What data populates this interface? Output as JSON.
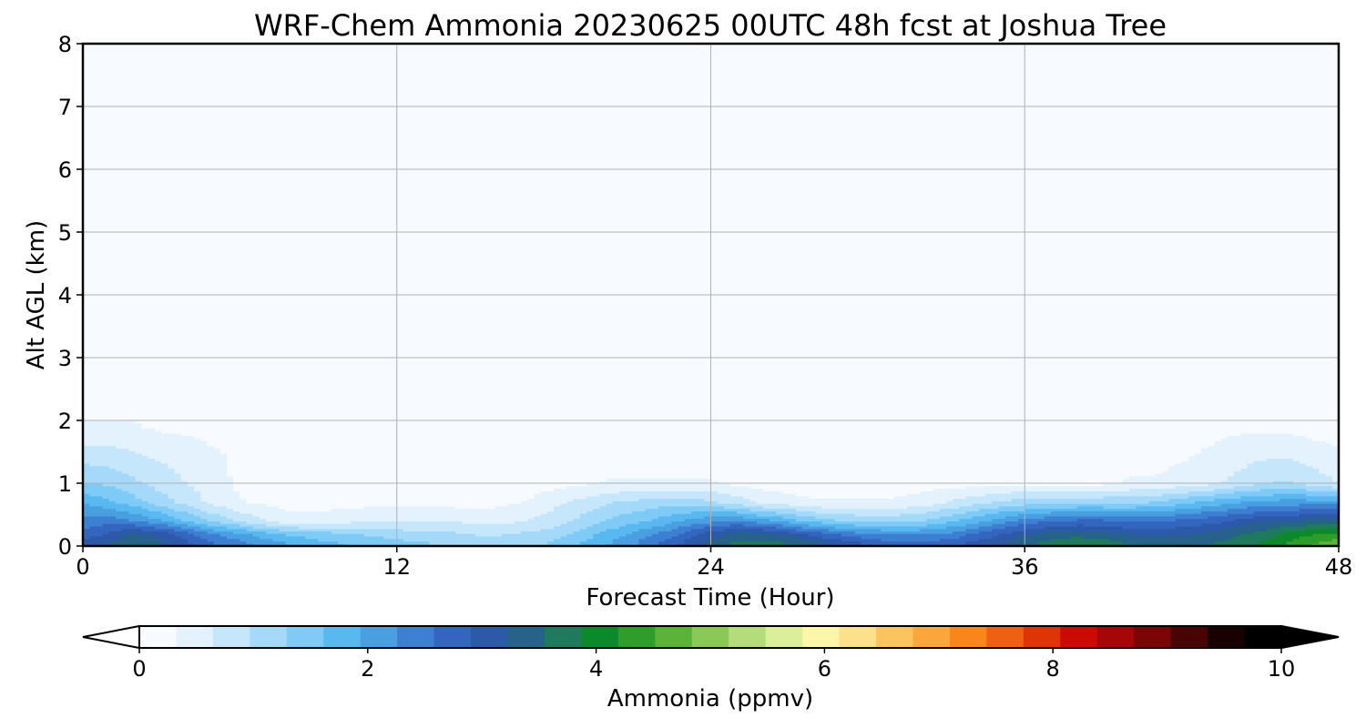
{
  "chart_data": {
    "type": "heatmap",
    "title": "WRF-Chem Ammonia  20230625 00UTC 48h fcst at Joshua Tree",
    "xlabel": "Forecast Time (Hour)",
    "ylabel": "Alt AGL (km)",
    "xlim": [
      0,
      48
    ],
    "ylim": [
      0,
      8
    ],
    "xticks": [
      "0",
      "12",
      "24",
      "36",
      "48"
    ],
    "yticks": [
      "0",
      "1",
      "2",
      "3",
      "4",
      "5",
      "6",
      "7",
      "8"
    ],
    "grid": true,
    "colorbar": {
      "label": "Ammonia  (ppmv)",
      "range": [
        0,
        10
      ],
      "ticks": [
        "0",
        "2",
        "4",
        "6",
        "8",
        "10"
      ],
      "extend": "both",
      "colors": [
        "#f7fbff",
        "#e3f2fd",
        "#c6e7fb",
        "#a4d9fa",
        "#7fcaf7",
        "#5ab8f0",
        "#4a9fe0",
        "#3d7fd0",
        "#3466c0",
        "#2c5aa8",
        "#27628a",
        "#1f7a5e",
        "#0c8a2a",
        "#2e9d2a",
        "#5cb33a",
        "#8ac857",
        "#b5dc7a",
        "#dcee9c",
        "#fbf6a8",
        "#fde08a",
        "#fcc45e",
        "#fba63a",
        "#f8861a",
        "#ee6012",
        "#de3408",
        "#cc0a04",
        "#a60606",
        "#7a0505",
        "#4a0303",
        "#1a0101",
        "#000000"
      ]
    },
    "profile_hours": [
      0,
      1,
      2,
      3,
      4,
      5,
      6,
      7,
      8,
      9,
      10,
      11,
      12,
      13,
      14,
      15,
      16,
      17,
      18,
      19,
      20,
      21,
      22,
      23,
      24,
      25,
      26,
      27,
      28,
      29,
      30,
      31,
      32,
      33,
      34,
      35,
      36,
      37,
      38,
      39,
      40,
      41,
      42,
      43,
      44,
      45,
      46,
      47,
      48
    ],
    "series": [
      {
        "name": "",
        "level_km": 0.05,
        "values": [
          3.0,
          3.2,
          3.5,
          3.2,
          2.9,
          2.5,
          2.3,
          2.0,
          1.8,
          1.6,
          1.5,
          1.4,
          1.3,
          1.2,
          1.1,
          1.0,
          1.0,
          1.1,
          1.2,
          1.5,
          1.8,
          2.1,
          2.5,
          2.9,
          3.3,
          3.6,
          3.6,
          3.5,
          3.3,
          3.0,
          2.8,
          2.6,
          2.6,
          2.7,
          2.9,
          3.1,
          3.4,
          3.6,
          3.7,
          3.7,
          3.5,
          3.4,
          3.4,
          3.5,
          3.6,
          3.8,
          4.2,
          4.5,
          4.7
        ]
      },
      {
        "name": "",
        "level_km": 0.2,
        "values": [
          2.6,
          2.9,
          3.2,
          3.0,
          2.6,
          2.2,
          1.9,
          1.6,
          1.4,
          1.3,
          1.2,
          1.1,
          1.0,
          0.9,
          0.9,
          0.8,
          0.8,
          0.9,
          1.0,
          1.3,
          1.6,
          1.9,
          2.2,
          2.6,
          3.0,
          3.3,
          3.2,
          3.0,
          2.7,
          2.4,
          2.2,
          2.1,
          2.1,
          2.2,
          2.5,
          2.8,
          3.1,
          3.3,
          3.4,
          3.3,
          3.1,
          3.0,
          3.1,
          3.2,
          3.4,
          3.6,
          3.9,
          4.1,
          4.2
        ]
      },
      {
        "name": "",
        "level_km": 0.4,
        "values": [
          2.3,
          2.4,
          2.2,
          1.9,
          1.5,
          1.1,
          0.8,
          0.5,
          0.3,
          0.3,
          0.4,
          0.5,
          0.5,
          0.5,
          0.5,
          0.4,
          0.4,
          0.5,
          0.7,
          0.9,
          1.2,
          1.4,
          1.6,
          1.9,
          2.1,
          2.2,
          2.0,
          1.7,
          1.4,
          1.2,
          1.1,
          1.1,
          1.2,
          1.4,
          1.7,
          2.0,
          2.3,
          2.5,
          2.6,
          2.6,
          2.5,
          2.5,
          2.6,
          2.7,
          2.9,
          3.1,
          3.2,
          3.3,
          3.3
        ]
      },
      {
        "name": "",
        "level_km": 0.7,
        "values": [
          1.8,
          1.6,
          1.3,
          1.0,
          0.7,
          0.4,
          0.2,
          0.1,
          0.05,
          0.05,
          0.05,
          0.05,
          0.05,
          0.05,
          0.05,
          0.05,
          0.1,
          0.2,
          0.4,
          0.6,
          0.8,
          0.9,
          1.0,
          1.0,
          0.9,
          0.7,
          0.4,
          0.3,
          0.2,
          0.2,
          0.2,
          0.2,
          0.3,
          0.5,
          0.7,
          0.9,
          1.0,
          1.1,
          1.1,
          1.1,
          1.1,
          1.2,
          1.4,
          1.6,
          1.8,
          1.9,
          2.0,
          2.0,
          2.0
        ]
      },
      {
        "name": "",
        "level_km": 1.0,
        "values": [
          1.2,
          1.1,
          0.9,
          0.7,
          0.5,
          0.3,
          0.1,
          0.05,
          0,
          0,
          0,
          0,
          0,
          0,
          0,
          0,
          0,
          0,
          0.05,
          0.1,
          0.2,
          0.2,
          0.2,
          0.2,
          0.2,
          0.1,
          0.05,
          0,
          0,
          0,
          0.05,
          0.05,
          0.05,
          0.05,
          0.05,
          0.1,
          0.1,
          0.1,
          0.1,
          0.1,
          0.2,
          0.2,
          0.3,
          0.4,
          0.6,
          0.8,
          0.9,
          0.7,
          0.5
        ]
      },
      {
        "name": "",
        "level_km": 1.5,
        "values": [
          0.6,
          0.6,
          0.5,
          0.4,
          0.3,
          0.2,
          0.1,
          0.05,
          0,
          0,
          0,
          0,
          0,
          0,
          0,
          0,
          0,
          0,
          0,
          0,
          0,
          0,
          0,
          0,
          0,
          0,
          0,
          0,
          0,
          0,
          0,
          0,
          0,
          0,
          0,
          0,
          0,
          0,
          0,
          0,
          0.05,
          0.05,
          0.1,
          0.2,
          0.3,
          0.4,
          0.4,
          0.3,
          0.2
        ]
      },
      {
        "name": "",
        "level_km": 1.9,
        "values": [
          0.2,
          0.2,
          0.2,
          0.1,
          0.1,
          0.05,
          0,
          0,
          0,
          0,
          0,
          0,
          0,
          0,
          0,
          0,
          0,
          0,
          0,
          0,
          0,
          0,
          0,
          0,
          0,
          0,
          0,
          0,
          0,
          0,
          0,
          0,
          0,
          0,
          0,
          0,
          0,
          0,
          0,
          0,
          0,
          0,
          0,
          0.05,
          0.1,
          0.1,
          0.1,
          0.05,
          0
        ]
      }
    ]
  }
}
